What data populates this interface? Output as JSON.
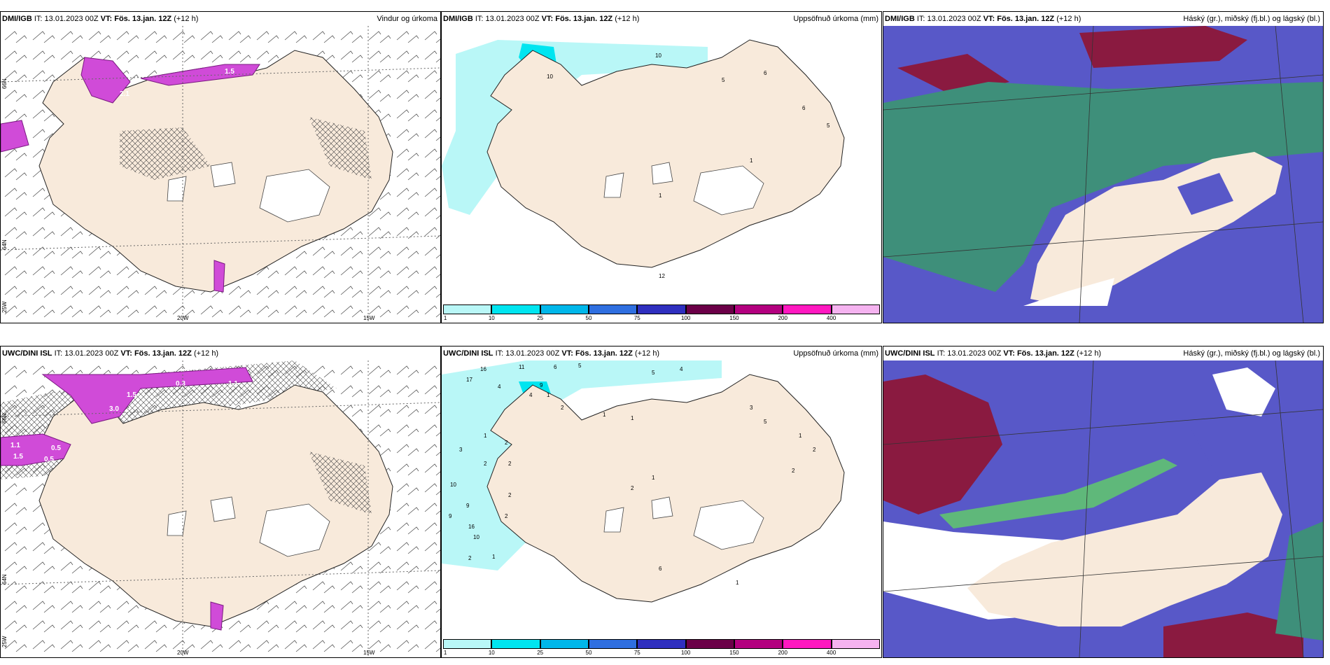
{
  "panels": [
    {
      "model": "DMI/IGB",
      "it_label": "IT:",
      "it": "13.01.2023 00Z",
      "vt_label": "VT:",
      "vt": "Fös. 13.jan. 12Z",
      "lead": "(+12 h)",
      "title": "Vindur og úrkoma"
    },
    {
      "model": "DMI/IGB",
      "it_label": "IT:",
      "it": "13.01.2023 00Z",
      "vt_label": "VT:",
      "vt": "Fös. 13.jan. 12Z",
      "lead": "(+12 h)",
      "title": "Uppsöfnuð úrkoma (mm)"
    },
    {
      "model": "DMI/IGB",
      "it_label": "IT:",
      "it": "13.01.2023 00Z",
      "vt_label": "VT:",
      "vt": "Fös. 13.jan. 12Z",
      "lead": "(+12 h)",
      "title": "Háský (gr.), miðský (fj.bl.) og lágský (bl.)"
    },
    {
      "model": "UWC/DINI ISL",
      "it_label": "IT:",
      "it": "13.01.2023 00Z",
      "vt_label": "VT:",
      "vt": "Fös. 13.jan. 12Z",
      "lead": "(+12 h)",
      "title": ""
    },
    {
      "model": "UWC/DINI ISL",
      "it_label": "IT:",
      "it": "13.01.2023 00Z",
      "vt_label": "VT:",
      "vt": "Fös. 13.jan. 12Z",
      "lead": "(+12 h)",
      "title": "Uppsöfnuð úrkoma (mm)"
    },
    {
      "model": "UWC/DINI ISL",
      "it_label": "IT:",
      "it": "13.01.2023 00Z",
      "vt_label": "VT:",
      "vt": "Fös. 13.jan. 12Z",
      "lead": "(+12 h)",
      "title": "Háský (gr.), miðský (fj.bl.) og lágský (bl.)"
    }
  ],
  "axes": {
    "lon_labels": [
      "20W",
      "15W"
    ],
    "lat_labels": [
      "66N",
      "64N"
    ],
    "lon_left": "25W"
  },
  "colorbar": {
    "ticks": [
      "1",
      "10",
      "25",
      "50",
      "75",
      "100",
      "150",
      "200",
      "400"
    ],
    "colors": [
      "#b9f7f7",
      "#00e5f0",
      "#00b7ea",
      "#2f6fe0",
      "#2f2fbf",
      "#6b0048",
      "#b3007f",
      "#ff18c0",
      "#f5b3f0"
    ]
  },
  "precip_values_top": [
    "10",
    "5",
    "6",
    "6",
    "5",
    "1",
    "1",
    "12",
    "10"
  ],
  "precip_values_bottom": [
    "16",
    "11",
    "6",
    "5",
    "5",
    "4",
    "17",
    "4",
    "9",
    "1",
    "4",
    "2",
    "1",
    "1",
    "3",
    "5",
    "1",
    "2",
    "2",
    "1",
    "1",
    "2",
    "2",
    "3",
    "2",
    "2",
    "10",
    "9",
    "2",
    "9",
    "16",
    "2",
    "10",
    "2",
    "1",
    "6",
    "1"
  ],
  "precip_rate_labels_top": [
    "2.1",
    "1.5"
  ],
  "precip_rate_labels_bottom": [
    "3.0",
    "1.5",
    "1.1",
    "1.5",
    "0.5",
    "0.5",
    "0.3",
    "1.1"
  ],
  "colors": {
    "land": "#f8eadb",
    "sea": "#ffffff",
    "precip_light": "#b9f7f7",
    "precip_mid": "#00e5f0",
    "rate_pink": "#d04bd8",
    "cloud_high": "#3e8f7a",
    "cloud_mid": "#5858c8",
    "cloud_low": "#8a1a40"
  }
}
